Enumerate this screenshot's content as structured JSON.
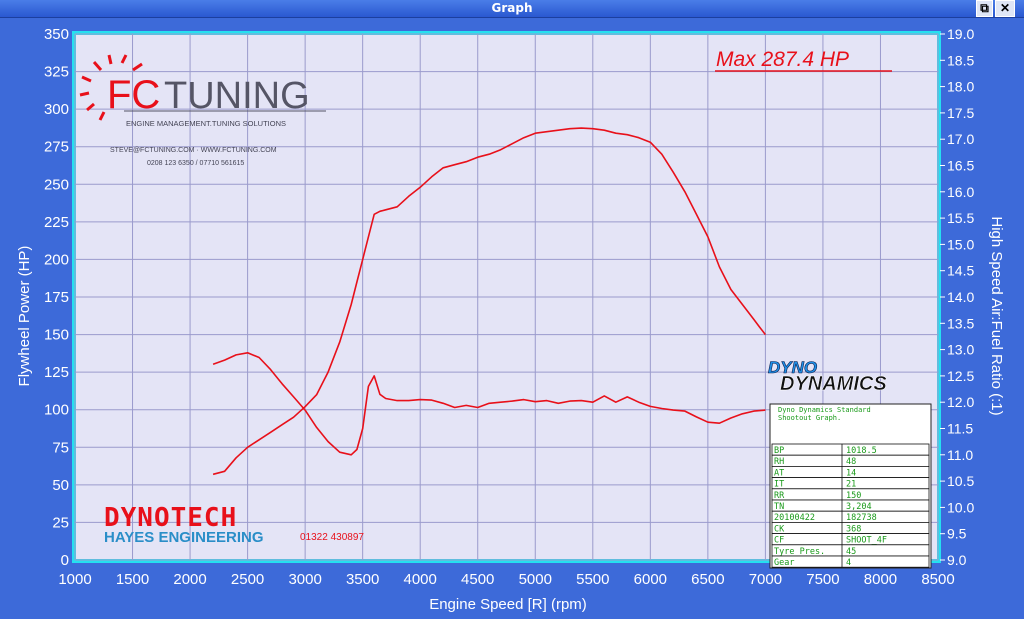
{
  "window": {
    "title": "Graph",
    "restore_glyph": "⧉",
    "close_glyph": "✕"
  },
  "colors": {
    "outer_bg": "#3d6ad9",
    "plot_bg": "#e4e4f6",
    "plot_border": "#25e0f0",
    "grid": "#9a9acc",
    "series": "#e8101a",
    "axis_text": "#ffffff"
  },
  "chart_data": {
    "type": "line",
    "xlabel": "Engine Speed [R] (rpm)",
    "ylabel_left": "Flywheel Power (HP)",
    "ylabel_right": "High Speed Air:Fuel Ratio (:1)",
    "xlim": [
      1000,
      8500
    ],
    "ylim_left": [
      0,
      350
    ],
    "ylim_right": [
      9.0,
      19.0
    ],
    "x_ticks": [
      "1000",
      "1500",
      "2000",
      "2500",
      "3000",
      "3500",
      "4000",
      "4500",
      "5000",
      "5500",
      "6000",
      "6500",
      "7000",
      "7500",
      "8000",
      "8500"
    ],
    "y_left_ticks": [
      "0",
      "25",
      "50",
      "75",
      "100",
      "125",
      "150",
      "175",
      "200",
      "225",
      "250",
      "275",
      "300",
      "325",
      "350"
    ],
    "y_right_ticks": [
      "9.0",
      "9.5",
      "10.0",
      "10.5",
      "11.0",
      "11.5",
      "12.0",
      "12.5",
      "13.0",
      "13.5",
      "14.0",
      "14.5",
      "15.0",
      "15.5",
      "16.0",
      "16.5",
      "17.0",
      "17.5",
      "18.0",
      "18.5",
      "19.0"
    ],
    "grid": true,
    "annotation": "Max 287.4 HP",
    "series": [
      {
        "axis": "left",
        "points": [
          [
            2200,
            57
          ],
          [
            2300,
            59
          ],
          [
            2400,
            68
          ],
          [
            2500,
            75
          ],
          [
            2600,
            80
          ],
          [
            2700,
            85
          ],
          [
            2800,
            90
          ],
          [
            2900,
            95
          ],
          [
            3000,
            102
          ],
          [
            3100,
            110
          ],
          [
            3200,
            125
          ],
          [
            3300,
            145
          ],
          [
            3400,
            170
          ],
          [
            3450,
            185
          ],
          [
            3500,
            200
          ],
          [
            3550,
            215
          ],
          [
            3600,
            230
          ],
          [
            3650,
            232
          ],
          [
            3700,
            233
          ],
          [
            3800,
            235
          ],
          [
            3900,
            242
          ],
          [
            4000,
            248
          ],
          [
            4100,
            255
          ],
          [
            4200,
            261
          ],
          [
            4300,
            263
          ],
          [
            4400,
            265
          ],
          [
            4500,
            268
          ],
          [
            4600,
            270
          ],
          [
            4700,
            273
          ],
          [
            4800,
            277
          ],
          [
            4900,
            281
          ],
          [
            5000,
            284
          ],
          [
            5100,
            285
          ],
          [
            5200,
            286
          ],
          [
            5300,
            287
          ],
          [
            5400,
            287.4
          ],
          [
            5500,
            287
          ],
          [
            5600,
            286
          ],
          [
            5700,
            284
          ],
          [
            5800,
            283
          ],
          [
            5900,
            281
          ],
          [
            6000,
            278
          ],
          [
            6100,
            270
          ],
          [
            6200,
            258
          ],
          [
            6300,
            245
          ],
          [
            6400,
            230
          ],
          [
            6500,
            215
          ],
          [
            6600,
            195
          ],
          [
            6700,
            180
          ],
          [
            6800,
            170
          ],
          [
            6900,
            160
          ],
          [
            6950,
            155
          ],
          [
            7000,
            150
          ]
        ]
      },
      {
        "axis": "right",
        "points": [
          [
            2200,
            12.72
          ],
          [
            2300,
            12.8
          ],
          [
            2400,
            12.9
          ],
          [
            2500,
            12.94
          ],
          [
            2600,
            12.85
          ],
          [
            2700,
            12.62
          ],
          [
            2800,
            12.35
          ],
          [
            2900,
            12.1
          ],
          [
            3000,
            11.85
          ],
          [
            3100,
            11.52
          ],
          [
            3200,
            11.25
          ],
          [
            3300,
            11.05
          ],
          [
            3400,
            11.0
          ],
          [
            3450,
            11.1
          ],
          [
            3500,
            11.5
          ],
          [
            3550,
            12.3
          ],
          [
            3600,
            12.5
          ],
          [
            3650,
            12.15
          ],
          [
            3700,
            12.07
          ],
          [
            3800,
            12.03
          ],
          [
            3900,
            12.03
          ],
          [
            4000,
            12.05
          ],
          [
            4100,
            12.04
          ],
          [
            4200,
            11.98
          ],
          [
            4300,
            11.9
          ],
          [
            4400,
            11.94
          ],
          [
            4500,
            11.9
          ],
          [
            4600,
            11.98
          ],
          [
            4700,
            12.0
          ],
          [
            4800,
            12.02
          ],
          [
            4900,
            12.05
          ],
          [
            5000,
            12.01
          ],
          [
            5100,
            12.03
          ],
          [
            5200,
            11.98
          ],
          [
            5300,
            12.02
          ],
          [
            5400,
            12.03
          ],
          [
            5500,
            12.0
          ],
          [
            5600,
            12.12
          ],
          [
            5700,
            12.0
          ],
          [
            5800,
            12.1
          ],
          [
            5900,
            12.0
          ],
          [
            6000,
            11.92
          ],
          [
            6100,
            11.88
          ],
          [
            6200,
            11.85
          ],
          [
            6300,
            11.83
          ],
          [
            6400,
            11.72
          ],
          [
            6500,
            11.62
          ],
          [
            6600,
            11.6
          ],
          [
            6700,
            11.7
          ],
          [
            6800,
            11.78
          ],
          [
            6900,
            11.83
          ],
          [
            7000,
            11.85
          ]
        ]
      }
    ]
  },
  "logos": {
    "fc_tuning": {
      "left": "FC",
      "right": "TUNING",
      "tagline": "ENGINE MANAGEMENT.TUNING SOLUTIONS",
      "contact_1": "STEVE@FCTUNING.COM  ·  WWW.FCTUNING.COM",
      "contact_2": "0208 123 6350 / 07710 561615"
    },
    "dynotech": {
      "name": "DYNOTECH",
      "sub": "HAYES ENGINEERING",
      "phone": "01322 430897"
    },
    "dyno_dynamics": {
      "line1": "DYNO",
      "line2": "DYNAMICS"
    }
  },
  "info_box": {
    "title_1": "Dyno Dynamics Standard",
    "title_2": "Shootout Graph.",
    "rows": [
      [
        "BP",
        "1018.5"
      ],
      [
        "RH",
        "48"
      ],
      [
        "AT",
        "14"
      ],
      [
        "IT",
        "21"
      ],
      [
        "RR",
        "150"
      ],
      [
        "TN",
        "3,204"
      ],
      [
        "20100422",
        "182738"
      ],
      [
        "CK",
        "368"
      ],
      [
        "CF",
        "SHOOT_4F"
      ],
      [
        "Tyre Pres.",
        "45"
      ],
      [
        "Gear",
        "4"
      ]
    ]
  }
}
